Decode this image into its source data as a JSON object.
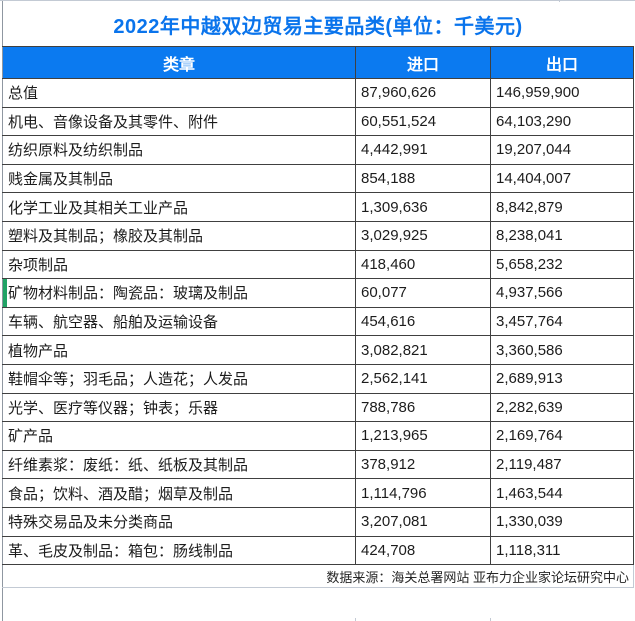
{
  "title": "2022年中越双边贸易主要品类(单位：千美元)",
  "table": {
    "columns": [
      "类章",
      "进口",
      "出口"
    ],
    "highlight_row_index": 7,
    "rows": [
      {
        "category": "总值",
        "import": "87,960,626",
        "export": "146,959,900"
      },
      {
        "category": "机电、音像设备及其零件、附件",
        "import": "60,551,524",
        "export": "64,103,290"
      },
      {
        "category": "纺织原料及纺织制品",
        "import": "4,442,991",
        "export": "19,207,044"
      },
      {
        "category": "贱金属及其制品",
        "import": "854,188",
        "export": "14,404,007"
      },
      {
        "category": "化学工业及其相关工业产品",
        "import": "1,309,636",
        "export": "8,842,879"
      },
      {
        "category": "塑料及其制品；橡胶及其制品",
        "import": "3,029,925",
        "export": "8,238,041"
      },
      {
        "category": "杂项制品",
        "import": "418,460",
        "export": "5,658,232"
      },
      {
        "category": "矿物材料制品：陶瓷品：玻璃及制品",
        "import": "60,077",
        "export": "4,937,566"
      },
      {
        "category": "车辆、航空器、船舶及运输设备",
        "import": "454,616",
        "export": "3,457,764"
      },
      {
        "category": "植物产品",
        "import": "3,082,821",
        "export": "3,360,586"
      },
      {
        "category": "鞋帽伞等；羽毛品；人造花；人发品",
        "import": "2,562,141",
        "export": "2,689,913"
      },
      {
        "category": "光学、医疗等仪器；钟表；乐器",
        "import": "788,786",
        "export": "2,282,639"
      },
      {
        "category": "矿产品",
        "import": "1,213,965",
        "export": "2,169,764"
      },
      {
        "category": "纤维素浆：废纸：纸、纸板及其制品",
        "import": "378,912",
        "export": "2,119,487"
      },
      {
        "category": "食品；饮料、酒及醋；烟草及制品",
        "import": "1,114,796",
        "export": "1,463,544"
      },
      {
        "category": "特殊交易品及未分类商品",
        "import": "3,207,081",
        "export": "1,330,039"
      },
      {
        "category": "革、毛皮及制品：箱包：肠线制品",
        "import": "424,708",
        "export": "1,118,311"
      }
    ]
  },
  "footer": {
    "source": "数据来源：海关总署网站 亚布力企业家论坛研究中心"
  },
  "colors": {
    "title_blue": "#0a74ec",
    "header_blue": "#0b7af0",
    "green_accent": "#21a366",
    "border_dark": "#404040",
    "gridline_light": "#c3cad4",
    "text": "#1c1c1c"
  },
  "chart_data": {
    "type": "table",
    "title": "2022年中越双边贸易主要品类(单位：千美元)",
    "columns": [
      "类章",
      "进口",
      "出口"
    ],
    "unit": "千美元",
    "rows": [
      [
        "总值",
        87960626,
        146959900
      ],
      [
        "机电、音像设备及其零件、附件",
        60551524,
        64103290
      ],
      [
        "纺织原料及纺织制品",
        4442991,
        19207044
      ],
      [
        "贱金属及其制品",
        854188,
        14404007
      ],
      [
        "化学工业及其相关工业产品",
        1309636,
        8842879
      ],
      [
        "塑料及其制品；橡胶及其制品",
        3029925,
        8238041
      ],
      [
        "杂项制品",
        418460,
        5658232
      ],
      [
        "矿物材料制品：陶瓷品：玻璃及制品",
        60077,
        4937566
      ],
      [
        "车辆、航空器、船舶及运输设备",
        454616,
        3457764
      ],
      [
        "植物产品",
        3082821,
        3360586
      ],
      [
        "鞋帽伞等；羽毛品；人造花；人发品",
        2562141,
        2689913
      ],
      [
        "光学、医疗等仪器；钟表；乐器",
        788786,
        2282639
      ],
      [
        "矿产品",
        1213965,
        2169764
      ],
      [
        "纤维素浆：废纸：纸、纸板及其制品",
        378912,
        2119487
      ],
      [
        "食品；饮料、酒及醋；烟草及制品",
        1114796,
        1463544
      ],
      [
        "特殊交易品及未分类商品",
        3207081,
        1330039
      ],
      [
        "革、毛皮及制品：箱包：肠线制品",
        424708,
        1118311
      ]
    ],
    "source": "数据来源：海关总署网站 亚布力企业家论坛研究中心"
  }
}
